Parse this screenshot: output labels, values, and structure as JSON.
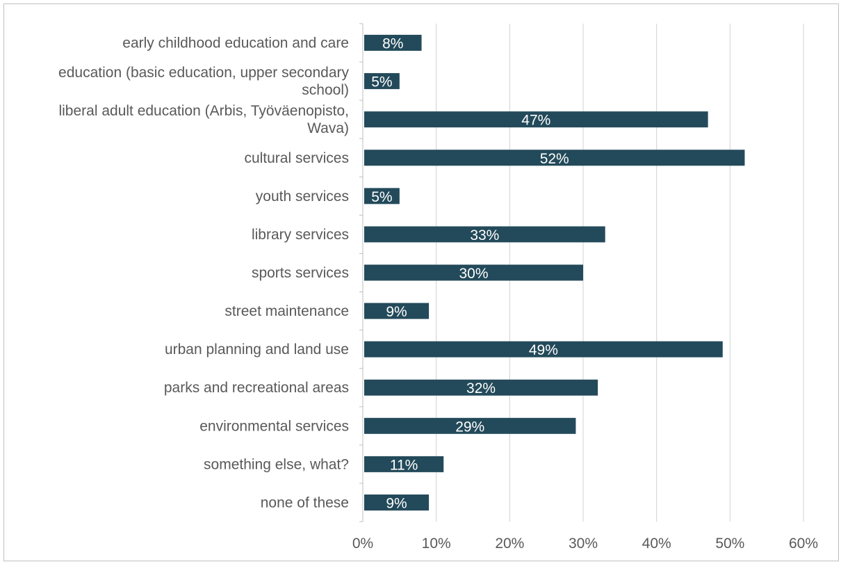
{
  "chart_data": {
    "type": "bar",
    "orientation": "horizontal",
    "categories": [
      "early childhood education and care",
      "education (basic education, upper secondary school)",
      "liberal adult education (Arbis, Työväenopisto, Wava)",
      "cultural services",
      "youth services",
      "library services",
      "sports services",
      "street maintenance",
      "urban planning and land use",
      "parks and recreational areas",
      "environmental services",
      "something else, what?",
      "none of these"
    ],
    "category_lines": [
      [
        "early childhood education and care"
      ],
      [
        "education (basic education, upper secondary",
        "school)"
      ],
      [
        "liberal adult education (Arbis, Työväenopisto,",
        "Wava)"
      ],
      [
        "cultural services"
      ],
      [
        "youth services"
      ],
      [
        "library services"
      ],
      [
        "sports services"
      ],
      [
        "street maintenance"
      ],
      [
        "urban planning and land use"
      ],
      [
        "parks and recreational areas"
      ],
      [
        "environmental services"
      ],
      [
        "something else, what?"
      ],
      [
        "none of these"
      ]
    ],
    "values": [
      8,
      5,
      47,
      52,
      5,
      33,
      30,
      9,
      49,
      32,
      29,
      11,
      9
    ],
    "data_labels": [
      "8%",
      "5%",
      "47%",
      "52%",
      "5%",
      "33%",
      "30%",
      "9%",
      "49%",
      "32%",
      "29%",
      "11%",
      "9%"
    ],
    "xlim": [
      0,
      60
    ],
    "xticks": [
      0,
      10,
      20,
      30,
      40,
      50,
      60
    ],
    "xtick_labels": [
      "0%",
      "10%",
      "20%",
      "30%",
      "40%",
      "50%",
      "60%"
    ],
    "title": "",
    "xlabel": "",
    "ylabel": "",
    "grid": true,
    "legend": "none",
    "bar_color": "#234a5a",
    "label_color": "#595959"
  }
}
